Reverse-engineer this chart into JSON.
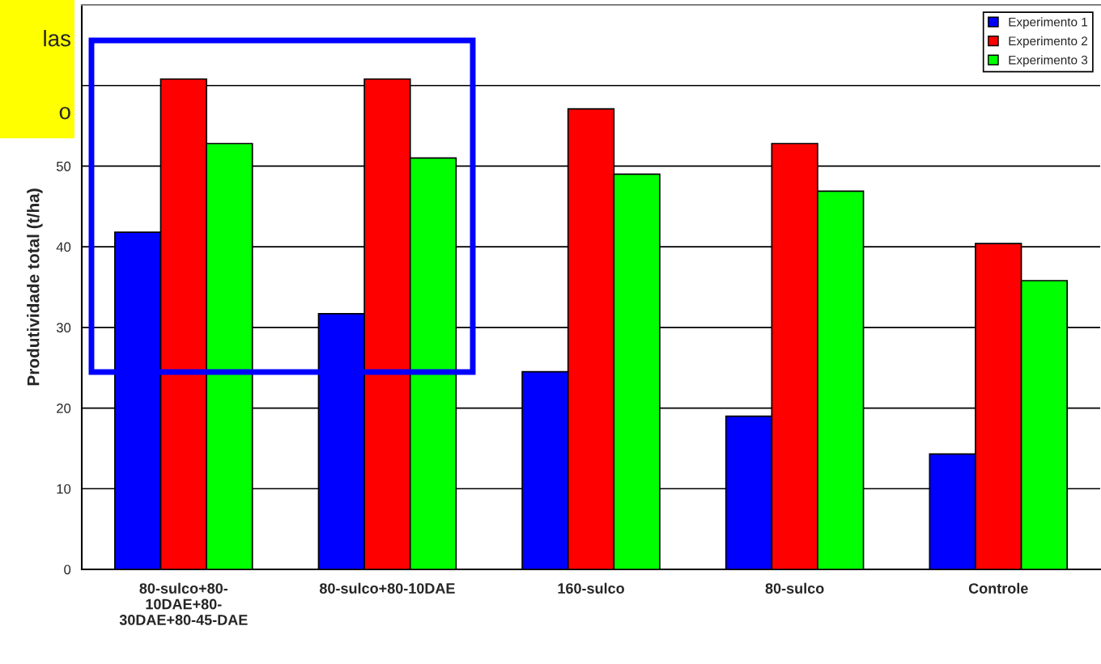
{
  "chart_data": {
    "type": "bar",
    "ylabel": "Produtividade total (t/ha)",
    "categories": [
      "80-sulco+80-\n10DAE+80-\n30DAE+80-45-DAE",
      "80-sulco+80-10DAE",
      "160-sulco",
      "80-sulco",
      "Controle"
    ],
    "series": [
      {
        "name": "Experimento 1",
        "color": "#0000ff",
        "values": [
          41.8,
          31.7,
          24.5,
          19.0,
          14.3
        ]
      },
      {
        "name": "Experimento 2",
        "color": "#ff0000",
        "values": [
          60.8,
          60.8,
          57.1,
          52.8,
          40.4
        ]
      },
      {
        "name": "Experimento 3",
        "color": "#00ff00",
        "values": [
          52.8,
          51.0,
          49.0,
          46.9,
          35.8
        ]
      }
    ],
    "ylim": [
      0,
      70
    ],
    "yticks": [
      0,
      10,
      20,
      30,
      40,
      50,
      {
        "value": 60,
        "label": null
      },
      {
        "value": 70,
        "label": null
      }
    ],
    "grid": "y",
    "legend": "top right",
    "annotations": [
      "las",
      "o"
    ]
  }
}
